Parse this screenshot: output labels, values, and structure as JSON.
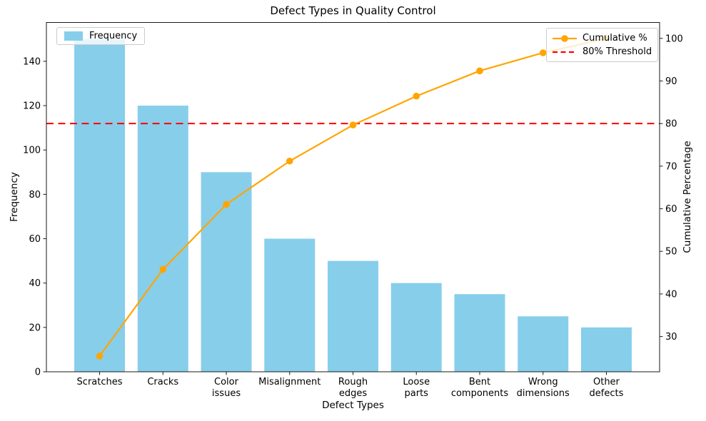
{
  "chart_data": {
    "type": "pareto (bar + line)",
    "title": "Defect Types in Quality Control",
    "xlabel": "Defect Types",
    "ylabel_left": "Frequency",
    "ylabel_right": "Cumulative Percentage",
    "categories": [
      "Scratches",
      "Cracks",
      "Color issues",
      "Misalignment",
      "Rough edges",
      "Loose parts",
      "Bent components",
      "Wrong dimensions",
      "Other defects"
    ],
    "series": [
      {
        "name": "Frequency",
        "type": "bar",
        "axis": "left",
        "color": "#87CEEB",
        "values": [
          150,
          120,
          90,
          60,
          50,
          40,
          35,
          25,
          20
        ]
      },
      {
        "name": "Cumulative %",
        "type": "line",
        "axis": "right",
        "color": "#FFA500",
        "marker": "circle",
        "values": [
          25.42,
          45.76,
          61.02,
          71.19,
          79.66,
          86.44,
          92.37,
          96.61,
          100.0
        ]
      },
      {
        "name": "80% Threshold",
        "type": "hline",
        "axis": "right",
        "color": "#FF0000",
        "style": "dashed",
        "value": 80
      }
    ],
    "left_axis": {
      "ticks": [
        0,
        20,
        40,
        60,
        80,
        100,
        120,
        140
      ],
      "range": [
        0,
        157.5
      ]
    },
    "right_axis": {
      "ticks": [
        30,
        40,
        50,
        60,
        70,
        80,
        90,
        100
      ],
      "range": [
        21.73,
        103.73
      ]
    },
    "x_range": [
      -0.84,
      8.84
    ],
    "bar_width_units": 0.8,
    "grid": false,
    "legend_left_position": "upper left",
    "legend_right_position": "upper right",
    "background": "#FFFFFF"
  }
}
